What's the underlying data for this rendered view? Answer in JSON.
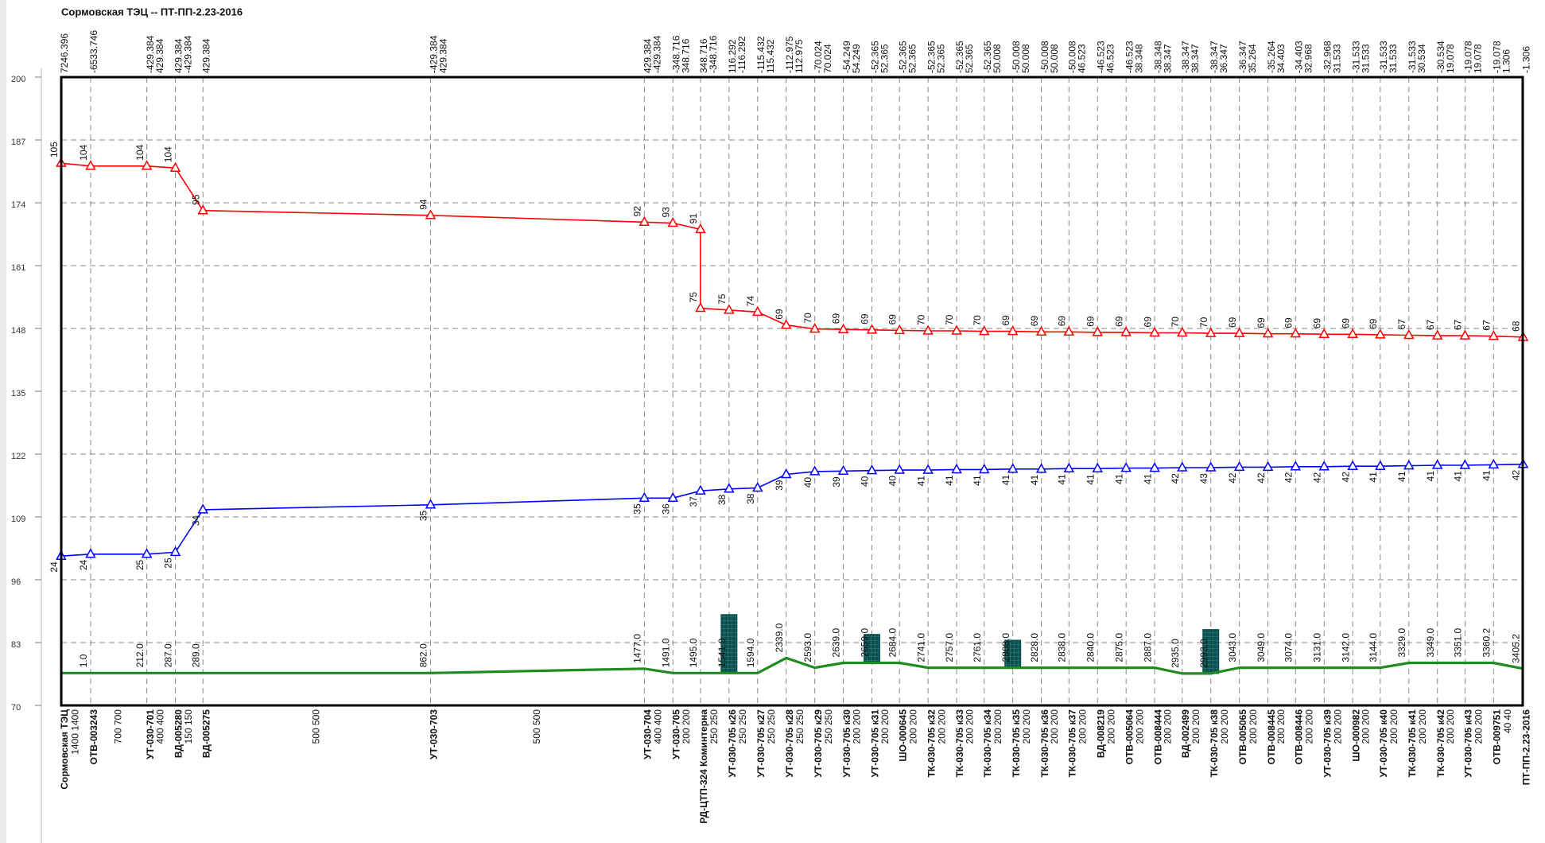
{
  "chart_data": {
    "type": "line",
    "title": "Сормовская ТЭЦ -- ПТ-ПП-2.23-2016",
    "ylim": [
      70,
      200
    ],
    "yticks": [
      70,
      83,
      96,
      109,
      122,
      135,
      148,
      161,
      174,
      187,
      200
    ],
    "grid": true,
    "categories": [
      "Сормовская ТЭЦ",
      "ОТВ-003243",
      "УТ-030-701",
      "ВД-005280",
      "ВД-005275",
      "УТ-030-703",
      "УТ-030-704",
      "УТ-030-705",
      "РД-ЦТП-324 Коминтерна",
      "УТ-030-705 к26",
      "УТ-030-705 к27",
      "УТ-030-705 к28",
      "УТ-030-705 к29",
      "УТ-030-705 к30",
      "УТ-030-705 к31",
      "ШО-000645",
      "ТК-030-705 к32",
      "ТК-030-705 к33",
      "ТК-030-705 к34",
      "ТК-030-705 к35",
      "ТК-030-705 к36",
      "ТК-030-705 к37",
      "ВД-008219",
      "ОТВ-005064",
      "ОТВ-008444",
      "ВД-002499",
      "ТК-030-705 к38",
      "ОТВ-005065",
      "ОТВ-008445",
      "ОТВ-008446",
      "УТ-030-705 к39",
      "ШО-000982",
      "УТ-030-705 к40",
      "ТК-030-705 к41",
      "ТК-030-705 к42",
      "УТ-030-705 к43",
      "ОТВ-009751",
      "ПТ-ПП-2.23-2016"
    ],
    "chainage": [
      null,
      "1.0",
      "212.0",
      "287.0",
      "289.0",
      "862.0",
      "1477.0",
      "1491.0",
      "1495.0",
      "1541.0",
      "1594.0",
      "2339.0",
      "2593.0",
      "2639.0",
      "2659.0",
      "2684.0",
      "2741.0",
      "2757.0",
      "2761.0",
      "2808.0",
      "2828.0",
      "2838.0",
      "2840.0",
      "2875.0",
      "2887.0",
      "2935.0",
      "2993.0",
      "3043.0",
      "3049.0",
      "3074.0",
      "3131.0",
      "3142.0",
      "3144.0",
      "3329.0",
      "3349.0",
      "3351.0",
      "3360.2",
      "3405.2"
    ],
    "flows": [
      [
        7246.396
      ],
      [
        -6533.746
      ],
      [
        -429.384,
        429.384
      ],
      [
        429.384,
        -429.384
      ],
      [
        429.384
      ],
      [
        -429.384,
        429.384
      ],
      [
        429.384,
        -429.384
      ],
      [
        -348.716,
        348.716
      ],
      [
        348.716,
        -348.716
      ],
      [
        116.292,
        -116.292
      ],
      [
        -115.432,
        115.432
      ],
      [
        -112.975,
        112.975
      ],
      [
        -70.024,
        70.024
      ],
      [
        -54.249,
        54.249
      ],
      [
        -52.365,
        52.365
      ],
      [
        -52.365,
        52.365
      ],
      [
        -52.365,
        52.365
      ],
      [
        -52.365,
        52.365
      ],
      [
        -52.365,
        50.008
      ],
      [
        -50.008,
        50.008
      ],
      [
        -50.008,
        50.008
      ],
      [
        -50.008,
        46.523
      ],
      [
        -46.523,
        46.523
      ],
      [
        -46.523,
        38.348
      ],
      [
        -38.348,
        38.347
      ],
      [
        -38.347,
        38.347
      ],
      [
        -38.347,
        36.347
      ],
      [
        -36.347,
        35.264
      ],
      [
        -35.264,
        34.403
      ],
      [
        -34.403,
        32.968
      ],
      [
        -32.968,
        31.533
      ],
      [
        -31.533,
        31.533
      ],
      [
        -31.533,
        31.533
      ],
      [
        -31.533,
        30.534
      ],
      [
        -30.534,
        19.078
      ],
      [
        -19.078,
        19.078
      ],
      [
        -19.078,
        1.306
      ],
      [
        -1.306
      ]
    ],
    "segments": [
      "1400 1400",
      "700 700",
      "400 400",
      "150 150",
      "500 500",
      "500 500",
      "400 400",
      "200 200",
      "250 250",
      "250 250",
      "250 250",
      "250 250",
      "250 250",
      "200 200",
      "200 200",
      "200 200",
      "200 200",
      "200 200",
      "200 200",
      "200 200",
      "200 200",
      "200 200",
      "200 200",
      "200 200",
      "200 200",
      "200 200",
      "200 200",
      "200 200",
      "200 200",
      "200 200",
      "200 200",
      "200 200",
      "200 200",
      "200 200",
      "200 200",
      "200 200",
      "40 40"
    ],
    "series": [
      {
        "color": "#ff0000",
        "marker": "triangle",
        "label_side": "above",
        "values": [
          182.2,
          181.6,
          181.6,
          181.2,
          172.4,
          171.4,
          170.0,
          169.8,
          [
            168.5,
            152.2
          ],
          151.8,
          151.4,
          148.7,
          147.9,
          147.8,
          147.7,
          147.6,
          147.5,
          147.5,
          147.4,
          147.4,
          147.3,
          147.3,
          147.2,
          147.2,
          147.1,
          147.1,
          147.0,
          147.0,
          146.9,
          146.9,
          146.8,
          146.8,
          146.7,
          146.6,
          146.5,
          146.5,
          146.4,
          146.2
        ],
        "heads": [
          105,
          104,
          104,
          104,
          95,
          94,
          92,
          93,
          [
            91,
            75
          ],
          75,
          74,
          69,
          70,
          69,
          69,
          69,
          70,
          70,
          70,
          69,
          69,
          69,
          69,
          69,
          69,
          70,
          70,
          69,
          69,
          69,
          69,
          69,
          69,
          67,
          67,
          67,
          67,
          68
        ]
      },
      {
        "color": "#0000ff",
        "marker": "triangle",
        "label_side": "below",
        "values": [
          100.9,
          101.3,
          101.3,
          101.7,
          110.5,
          111.5,
          112.9,
          112.9,
          114.4,
          114.8,
          115.0,
          117.8,
          118.4,
          118.5,
          118.6,
          118.7,
          118.7,
          118.8,
          118.8,
          118.9,
          118.9,
          119.0,
          119.0,
          119.1,
          119.1,
          119.2,
          119.2,
          119.3,
          119.3,
          119.4,
          119.4,
          119.5,
          119.5,
          119.6,
          119.7,
          119.7,
          119.8,
          119.9
        ],
        "heads": [
          24,
          24,
          25,
          25,
          34,
          35,
          35,
          36,
          37,
          38,
          38,
          39,
          40,
          39,
          40,
          40,
          41,
          41,
          41,
          41,
          41,
          41,
          41,
          41,
          41,
          42,
          43,
          42,
          42,
          42,
          42,
          42,
          41,
          41,
          41,
          41,
          41,
          42
        ]
      },
      {
        "color": "#1e8c1e",
        "values": [
          76.7,
          76.7,
          76.7,
          76.7,
          76.7,
          76.7,
          77.6,
          76.7,
          76.7,
          76.7,
          76.7,
          79.8,
          77.8,
          78.8,
          78.8,
          78.8,
          77.8,
          77.8,
          77.8,
          77.8,
          77.8,
          77.8,
          77.8,
          77.8,
          77.8,
          76.6,
          76.6,
          77.8,
          77.8,
          77.8,
          77.8,
          77.8,
          77.8,
          78.8,
          78.8,
          78.8,
          78.8,
          77.6
        ]
      }
    ],
    "chambers": [
      null,
      null,
      null,
      null,
      null,
      null,
      null,
      null,
      null,
      88.8,
      null,
      null,
      null,
      null,
      84.7,
      null,
      null,
      null,
      null,
      83.5,
      null,
      null,
      null,
      null,
      null,
      null,
      85.7,
      null,
      null,
      null,
      null,
      null,
      null,
      null,
      null,
      null,
      null,
      null
    ],
    "chamber_color": "#0b4f4f"
  }
}
